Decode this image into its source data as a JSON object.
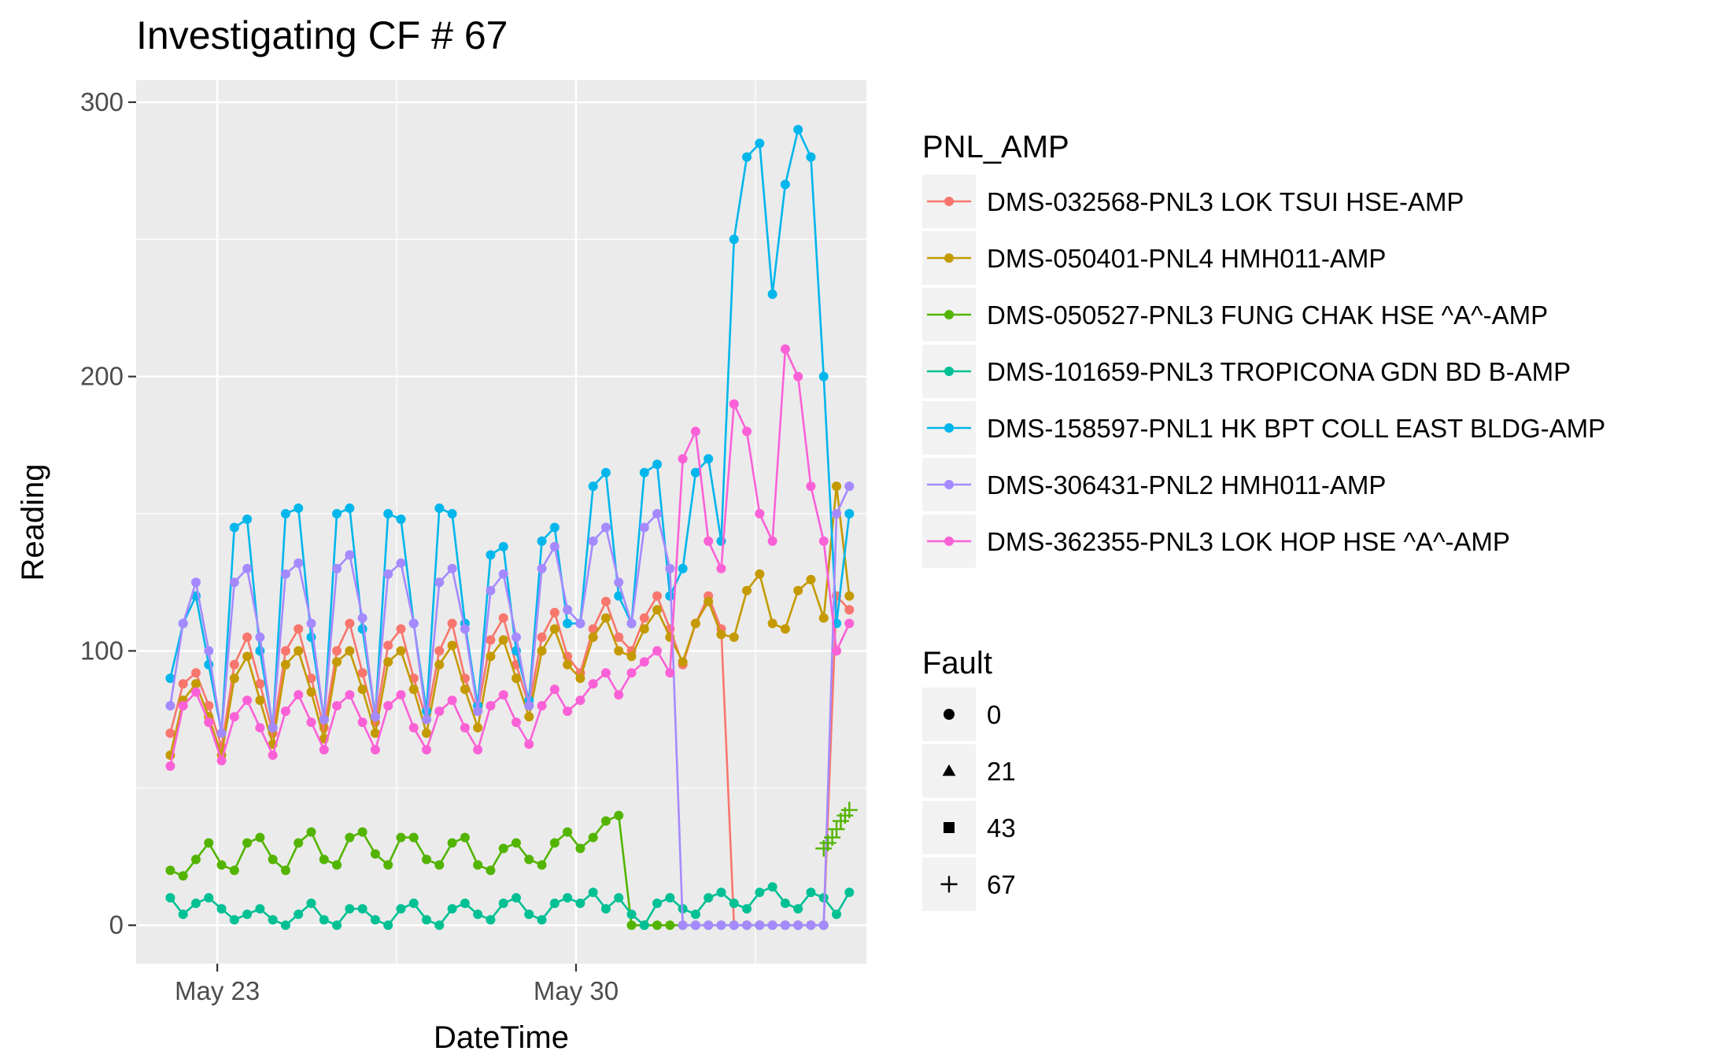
{
  "chart_data": {
    "type": "line",
    "title": "Investigating CF # 67",
    "xlabel": "DateTime",
    "ylabel": "Reading",
    "x_ticks": [
      {
        "label": "May 23",
        "date": "2018-05-23"
      },
      {
        "label": "May 30",
        "date": "2018-05-30"
      }
    ],
    "y_ticks": [
      0,
      100,
      200,
      300
    ],
    "xlim": [
      "2018-05-21T10:00",
      "2018-06-04T16:00"
    ],
    "ylim": [
      -14,
      308
    ],
    "grid": true,
    "panel_background": "#ebebeb",
    "legend_position": "right",
    "legend": {
      "color_title": "PNL_AMP",
      "shape_title": "Fault",
      "shapes": [
        {
          "label": "0",
          "shape": "circle"
        },
        {
          "label": "21",
          "shape": "triangle"
        },
        {
          "label": "43",
          "shape": "square"
        },
        {
          "label": "67",
          "shape": "plus"
        }
      ]
    },
    "series": [
      {
        "name": "DMS-032568-PNL3 LOK TSUI HSE-AMP",
        "color": "#F8766D",
        "fault": 0,
        "x": [
          "2018-05-22T02:00",
          "2018-05-22T08:00",
          "2018-05-22T14:00",
          "2018-05-22T20:00",
          "2018-05-23T02:00",
          "2018-05-23T08:00",
          "2018-05-23T14:00",
          "2018-05-23T20:00",
          "2018-05-24T02:00",
          "2018-05-24T08:00",
          "2018-05-24T14:00",
          "2018-05-24T20:00",
          "2018-05-25T02:00",
          "2018-05-25T08:00",
          "2018-05-25T14:00",
          "2018-05-25T20:00",
          "2018-05-26T02:00",
          "2018-05-26T08:00",
          "2018-05-26T14:00",
          "2018-05-26T20:00",
          "2018-05-27T02:00",
          "2018-05-27T08:00",
          "2018-05-27T14:00",
          "2018-05-27T20:00",
          "2018-05-28T02:00",
          "2018-05-28T08:00",
          "2018-05-28T14:00",
          "2018-05-28T20:00",
          "2018-05-29T02:00",
          "2018-05-29T08:00",
          "2018-05-29T14:00",
          "2018-05-29T20:00",
          "2018-05-30T02:00",
          "2018-05-30T08:00",
          "2018-05-30T14:00",
          "2018-05-30T20:00",
          "2018-05-31T02:00",
          "2018-05-31T08:00",
          "2018-05-31T14:00",
          "2018-05-31T20:00",
          "2018-06-01T02:00",
          "2018-06-01T08:00",
          "2018-06-01T14:00",
          "2018-06-01T20:00",
          "2018-06-02T02:00",
          "2018-06-02T08:00",
          "2018-06-02T14:00",
          "2018-06-02T20:00",
          "2018-06-03T02:00",
          "2018-06-03T08:00",
          "2018-06-03T14:00",
          "2018-06-03T20:00",
          "2018-06-04T02:00",
          "2018-06-04T08:00"
        ],
        "y": [
          70,
          88,
          92,
          80,
          65,
          95,
          105,
          88,
          70,
          100,
          108,
          90,
          72,
          100,
          110,
          92,
          74,
          102,
          108,
          90,
          75,
          100,
          110,
          90,
          78,
          104,
          112,
          95,
          80,
          105,
          114,
          98,
          92,
          108,
          118,
          105,
          100,
          112,
          120,
          108,
          95,
          110,
          120,
          108,
          0,
          0,
          0,
          0,
          0,
          0,
          0,
          0,
          120,
          115
        ]
      },
      {
        "name": "DMS-050401-PNL4 HMH011-AMP",
        "color": "#C49A00",
        "fault": 0,
        "x": [
          "2018-05-22T02:00",
          "2018-05-22T08:00",
          "2018-05-22T14:00",
          "2018-05-22T20:00",
          "2018-05-23T02:00",
          "2018-05-23T08:00",
          "2018-05-23T14:00",
          "2018-05-23T20:00",
          "2018-05-24T02:00",
          "2018-05-24T08:00",
          "2018-05-24T14:00",
          "2018-05-24T20:00",
          "2018-05-25T02:00",
          "2018-05-25T08:00",
          "2018-05-25T14:00",
          "2018-05-25T20:00",
          "2018-05-26T02:00",
          "2018-05-26T08:00",
          "2018-05-26T14:00",
          "2018-05-26T20:00",
          "2018-05-27T02:00",
          "2018-05-27T08:00",
          "2018-05-27T14:00",
          "2018-05-27T20:00",
          "2018-05-28T02:00",
          "2018-05-28T08:00",
          "2018-05-28T14:00",
          "2018-05-28T20:00",
          "2018-05-29T02:00",
          "2018-05-29T08:00",
          "2018-05-29T14:00",
          "2018-05-29T20:00",
          "2018-05-30T02:00",
          "2018-05-30T08:00",
          "2018-05-30T14:00",
          "2018-05-30T20:00",
          "2018-05-31T02:00",
          "2018-05-31T08:00",
          "2018-05-31T14:00",
          "2018-05-31T20:00",
          "2018-06-01T02:00",
          "2018-06-01T08:00",
          "2018-06-01T14:00",
          "2018-06-01T20:00",
          "2018-06-02T02:00",
          "2018-06-02T08:00",
          "2018-06-02T14:00",
          "2018-06-02T20:00",
          "2018-06-03T02:00",
          "2018-06-03T08:00",
          "2018-06-03T14:00",
          "2018-06-03T20:00",
          "2018-06-04T02:00",
          "2018-06-04T08:00"
        ],
        "y": [
          62,
          82,
          88,
          76,
          62,
          90,
          98,
          82,
          66,
          95,
          100,
          85,
          68,
          96,
          100,
          86,
          70,
          96,
          100,
          86,
          70,
          95,
          102,
          86,
          72,
          98,
          104,
          90,
          76,
          100,
          108,
          95,
          90,
          105,
          112,
          100,
          98,
          108,
          115,
          105,
          96,
          110,
          118,
          106,
          105,
          122,
          128,
          110,
          108,
          122,
          126,
          112,
          160,
          120
        ]
      },
      {
        "name": "DMS-050527-PNL3 FUNG CHAK HSE ^A^-AMP",
        "color": "#53B400",
        "fault": 0,
        "x": [
          "2018-05-22T02:00",
          "2018-05-22T08:00",
          "2018-05-22T14:00",
          "2018-05-22T20:00",
          "2018-05-23T02:00",
          "2018-05-23T08:00",
          "2018-05-23T14:00",
          "2018-05-23T20:00",
          "2018-05-24T02:00",
          "2018-05-24T08:00",
          "2018-05-24T14:00",
          "2018-05-24T20:00",
          "2018-05-25T02:00",
          "2018-05-25T08:00",
          "2018-05-25T14:00",
          "2018-05-25T20:00",
          "2018-05-26T02:00",
          "2018-05-26T08:00",
          "2018-05-26T14:00",
          "2018-05-26T20:00",
          "2018-05-27T02:00",
          "2018-05-27T08:00",
          "2018-05-27T14:00",
          "2018-05-27T20:00",
          "2018-05-28T02:00",
          "2018-05-28T08:00",
          "2018-05-28T14:00",
          "2018-05-28T20:00",
          "2018-05-29T02:00",
          "2018-05-29T08:00",
          "2018-05-29T14:00",
          "2018-05-29T20:00",
          "2018-05-30T02:00",
          "2018-05-30T08:00",
          "2018-05-30T14:00",
          "2018-05-30T20:00",
          "2018-05-31T02:00",
          "2018-05-31T08:00",
          "2018-05-31T14:00",
          "2018-05-31T20:00",
          "2018-06-01T02:00",
          "2018-06-01T08:00",
          "2018-06-01T14:00",
          "2018-06-01T20:00",
          "2018-06-02T02:00",
          "2018-06-02T08:00",
          "2018-06-02T14:00",
          "2018-06-02T20:00",
          "2018-06-03T02:00",
          "2018-06-03T08:00",
          "2018-06-03T14:00",
          "2018-06-03T20:00"
        ],
        "y": [
          20,
          18,
          24,
          30,
          22,
          20,
          30,
          32,
          24,
          20,
          30,
          34,
          24,
          22,
          32,
          34,
          26,
          22,
          32,
          32,
          24,
          22,
          30,
          32,
          22,
          20,
          28,
          30,
          24,
          22,
          30,
          34,
          28,
          32,
          38,
          40,
          0,
          0,
          0,
          0,
          0,
          0,
          0,
          0,
          0,
          0,
          0,
          0,
          0,
          0,
          0,
          0
        ]
      },
      {
        "name": "DMS-101659-PNL3 TROPICONA GDN BD B-AMP",
        "color": "#00C094",
        "fault": 0,
        "x": [
          "2018-05-22T02:00",
          "2018-05-22T08:00",
          "2018-05-22T14:00",
          "2018-05-22T20:00",
          "2018-05-23T02:00",
          "2018-05-23T08:00",
          "2018-05-23T14:00",
          "2018-05-23T20:00",
          "2018-05-24T02:00",
          "2018-05-24T08:00",
          "2018-05-24T14:00",
          "2018-05-24T20:00",
          "2018-05-25T02:00",
          "2018-05-25T08:00",
          "2018-05-25T14:00",
          "2018-05-25T20:00",
          "2018-05-26T02:00",
          "2018-05-26T08:00",
          "2018-05-26T14:00",
          "2018-05-26T20:00",
          "2018-05-27T02:00",
          "2018-05-27T08:00",
          "2018-05-27T14:00",
          "2018-05-27T20:00",
          "2018-05-28T02:00",
          "2018-05-28T08:00",
          "2018-05-28T14:00",
          "2018-05-28T20:00",
          "2018-05-29T02:00",
          "2018-05-29T08:00",
          "2018-05-29T14:00",
          "2018-05-29T20:00",
          "2018-05-30T02:00",
          "2018-05-30T08:00",
          "2018-05-30T14:00",
          "2018-05-30T20:00",
          "2018-05-31T02:00",
          "2018-05-31T08:00",
          "2018-05-31T14:00",
          "2018-05-31T20:00",
          "2018-06-01T02:00",
          "2018-06-01T08:00",
          "2018-06-01T14:00",
          "2018-06-01T20:00",
          "2018-06-02T02:00",
          "2018-06-02T08:00",
          "2018-06-02T14:00",
          "2018-06-02T20:00",
          "2018-06-03T02:00",
          "2018-06-03T08:00",
          "2018-06-03T14:00",
          "2018-06-03T20:00",
          "2018-06-04T02:00",
          "2018-06-04T08:00"
        ],
        "y": [
          10,
          4,
          8,
          10,
          6,
          2,
          4,
          6,
          2,
          0,
          4,
          8,
          2,
          0,
          6,
          6,
          2,
          0,
          6,
          8,
          2,
          0,
          6,
          8,
          4,
          2,
          8,
          10,
          4,
          2,
          8,
          10,
          8,
          12,
          6,
          10,
          4,
          0,
          8,
          10,
          6,
          4,
          10,
          12,
          8,
          6,
          12,
          14,
          8,
          6,
          12,
          10,
          4,
          12
        ]
      },
      {
        "name": "DMS-158597-PNL1 HK BPT COLL EAST BLDG-AMP",
        "color": "#00B6EB",
        "fault": 0,
        "x": [
          "2018-05-22T02:00",
          "2018-05-22T08:00",
          "2018-05-22T14:00",
          "2018-05-22T20:00",
          "2018-05-23T02:00",
          "2018-05-23T08:00",
          "2018-05-23T14:00",
          "2018-05-23T20:00",
          "2018-05-24T02:00",
          "2018-05-24T08:00",
          "2018-05-24T14:00",
          "2018-05-24T20:00",
          "2018-05-25T02:00",
          "2018-05-25T08:00",
          "2018-05-25T14:00",
          "2018-05-25T20:00",
          "2018-05-26T02:00",
          "2018-05-26T08:00",
          "2018-05-26T14:00",
          "2018-05-26T20:00",
          "2018-05-27T02:00",
          "2018-05-27T08:00",
          "2018-05-27T14:00",
          "2018-05-27T20:00",
          "2018-05-28T02:00",
          "2018-05-28T08:00",
          "2018-05-28T14:00",
          "2018-05-28T20:00",
          "2018-05-29T02:00",
          "2018-05-29T08:00",
          "2018-05-29T14:00",
          "2018-05-29T20:00",
          "2018-05-30T02:00",
          "2018-05-30T08:00",
          "2018-05-30T14:00",
          "2018-05-30T20:00",
          "2018-05-31T02:00",
          "2018-05-31T08:00",
          "2018-05-31T14:00",
          "2018-05-31T20:00",
          "2018-06-01T02:00",
          "2018-06-01T08:00",
          "2018-06-01T14:00",
          "2018-06-01T20:00",
          "2018-06-02T02:00",
          "2018-06-02T08:00",
          "2018-06-02T14:00",
          "2018-06-02T20:00",
          "2018-06-03T02:00",
          "2018-06-03T08:00",
          "2018-06-03T14:00",
          "2018-06-03T20:00",
          "2018-06-04T02:00",
          "2018-06-04T08:00"
        ],
        "y": [
          90,
          110,
          120,
          95,
          70,
          145,
          148,
          100,
          72,
          150,
          152,
          105,
          75,
          150,
          152,
          108,
          76,
          150,
          148,
          110,
          78,
          152,
          150,
          110,
          80,
          135,
          138,
          100,
          82,
          140,
          145,
          110,
          110,
          160,
          165,
          120,
          110,
          165,
          168,
          120,
          130,
          165,
          170,
          140,
          250,
          280,
          285,
          230,
          270,
          290,
          280,
          200,
          110,
          150
        ]
      },
      {
        "name": "DMS-306431-PNL2 HMH011-AMP",
        "color": "#A58AFF",
        "fault": 0,
        "x": [
          "2018-05-22T02:00",
          "2018-05-22T08:00",
          "2018-05-22T14:00",
          "2018-05-22T20:00",
          "2018-05-23T02:00",
          "2018-05-23T08:00",
          "2018-05-23T14:00",
          "2018-05-23T20:00",
          "2018-05-24T02:00",
          "2018-05-24T08:00",
          "2018-05-24T14:00",
          "2018-05-24T20:00",
          "2018-05-25T02:00",
          "2018-05-25T08:00",
          "2018-05-25T14:00",
          "2018-05-25T20:00",
          "2018-05-26T02:00",
          "2018-05-26T08:00",
          "2018-05-26T14:00",
          "2018-05-26T20:00",
          "2018-05-27T02:00",
          "2018-05-27T08:00",
          "2018-05-27T14:00",
          "2018-05-27T20:00",
          "2018-05-28T02:00",
          "2018-05-28T08:00",
          "2018-05-28T14:00",
          "2018-05-28T20:00",
          "2018-05-29T02:00",
          "2018-05-29T08:00",
          "2018-05-29T14:00",
          "2018-05-29T20:00",
          "2018-05-30T02:00",
          "2018-05-30T08:00",
          "2018-05-30T14:00",
          "2018-05-30T20:00",
          "2018-05-31T02:00",
          "2018-05-31T08:00",
          "2018-05-31T14:00",
          "2018-05-31T20:00",
          "2018-06-01T02:00",
          "2018-06-01T08:00",
          "2018-06-01T14:00",
          "2018-06-01T20:00",
          "2018-06-02T02:00",
          "2018-06-02T08:00",
          "2018-06-02T14:00",
          "2018-06-02T20:00",
          "2018-06-03T02:00",
          "2018-06-03T08:00",
          "2018-06-03T14:00",
          "2018-06-03T20:00",
          "2018-06-04T02:00",
          "2018-06-04T08:00"
        ],
        "y": [
          80,
          110,
          125,
          100,
          70,
          125,
          130,
          105,
          72,
          128,
          132,
          110,
          75,
          130,
          135,
          112,
          76,
          128,
          132,
          110,
          75,
          125,
          130,
          108,
          78,
          122,
          128,
          105,
          80,
          130,
          138,
          115,
          110,
          140,
          145,
          125,
          110,
          145,
          150,
          130,
          0,
          0,
          0,
          0,
          0,
          0,
          0,
          0,
          0,
          0,
          0,
          0,
          150,
          160
        ]
      },
      {
        "name": "DMS-362355-PNL3 LOK HOP HSE ^A^-AMP",
        "color": "#FB61D7",
        "fault": 0,
        "x": [
          "2018-05-22T02:00",
          "2018-05-22T08:00",
          "2018-05-22T14:00",
          "2018-05-22T20:00",
          "2018-05-23T02:00",
          "2018-05-23T08:00",
          "2018-05-23T14:00",
          "2018-05-23T20:00",
          "2018-05-24T02:00",
          "2018-05-24T08:00",
          "2018-05-24T14:00",
          "2018-05-24T20:00",
          "2018-05-25T02:00",
          "2018-05-25T08:00",
          "2018-05-25T14:00",
          "2018-05-25T20:00",
          "2018-05-26T02:00",
          "2018-05-26T08:00",
          "2018-05-26T14:00",
          "2018-05-26T20:00",
          "2018-05-27T02:00",
          "2018-05-27T08:00",
          "2018-05-27T14:00",
          "2018-05-27T20:00",
          "2018-05-28T02:00",
          "2018-05-28T08:00",
          "2018-05-28T14:00",
          "2018-05-28T20:00",
          "2018-05-29T02:00",
          "2018-05-29T08:00",
          "2018-05-29T14:00",
          "2018-05-29T20:00",
          "2018-05-30T02:00",
          "2018-05-30T08:00",
          "2018-05-30T14:00",
          "2018-05-30T20:00",
          "2018-05-31T02:00",
          "2018-05-31T08:00",
          "2018-05-31T14:00",
          "2018-05-31T20:00",
          "2018-06-01T02:00",
          "2018-06-01T08:00",
          "2018-06-01T14:00",
          "2018-06-01T20:00",
          "2018-06-02T02:00",
          "2018-06-02T08:00",
          "2018-06-02T14:00",
          "2018-06-02T20:00",
          "2018-06-03T02:00",
          "2018-06-03T08:00",
          "2018-06-03T14:00",
          "2018-06-03T20:00",
          "2018-06-04T02:00",
          "2018-06-04T08:00"
        ],
        "y": [
          58,
          80,
          85,
          74,
          60,
          76,
          82,
          72,
          62,
          78,
          84,
          74,
          64,
          80,
          84,
          74,
          64,
          80,
          84,
          72,
          64,
          78,
          82,
          72,
          64,
          80,
          84,
          74,
          66,
          80,
          86,
          78,
          82,
          88,
          92,
          84,
          92,
          96,
          100,
          92,
          170,
          180,
          140,
          130,
          190,
          180,
          150,
          140,
          210,
          200,
          160,
          140,
          100,
          110
        ]
      },
      {
        "name": "DMS-050527-PNL3 FUNG CHAK HSE ^A^-AMP",
        "color": "#53B400",
        "fault": 67,
        "x": [
          "2018-06-03T20:00",
          "2018-06-03T22:00",
          "2018-06-04T00:00",
          "2018-06-04T02:00",
          "2018-06-04T04:00",
          "2018-06-04T06:00",
          "2018-06-04T08:00"
        ],
        "y": [
          28,
          30,
          32,
          35,
          38,
          40,
          42
        ]
      }
    ]
  }
}
